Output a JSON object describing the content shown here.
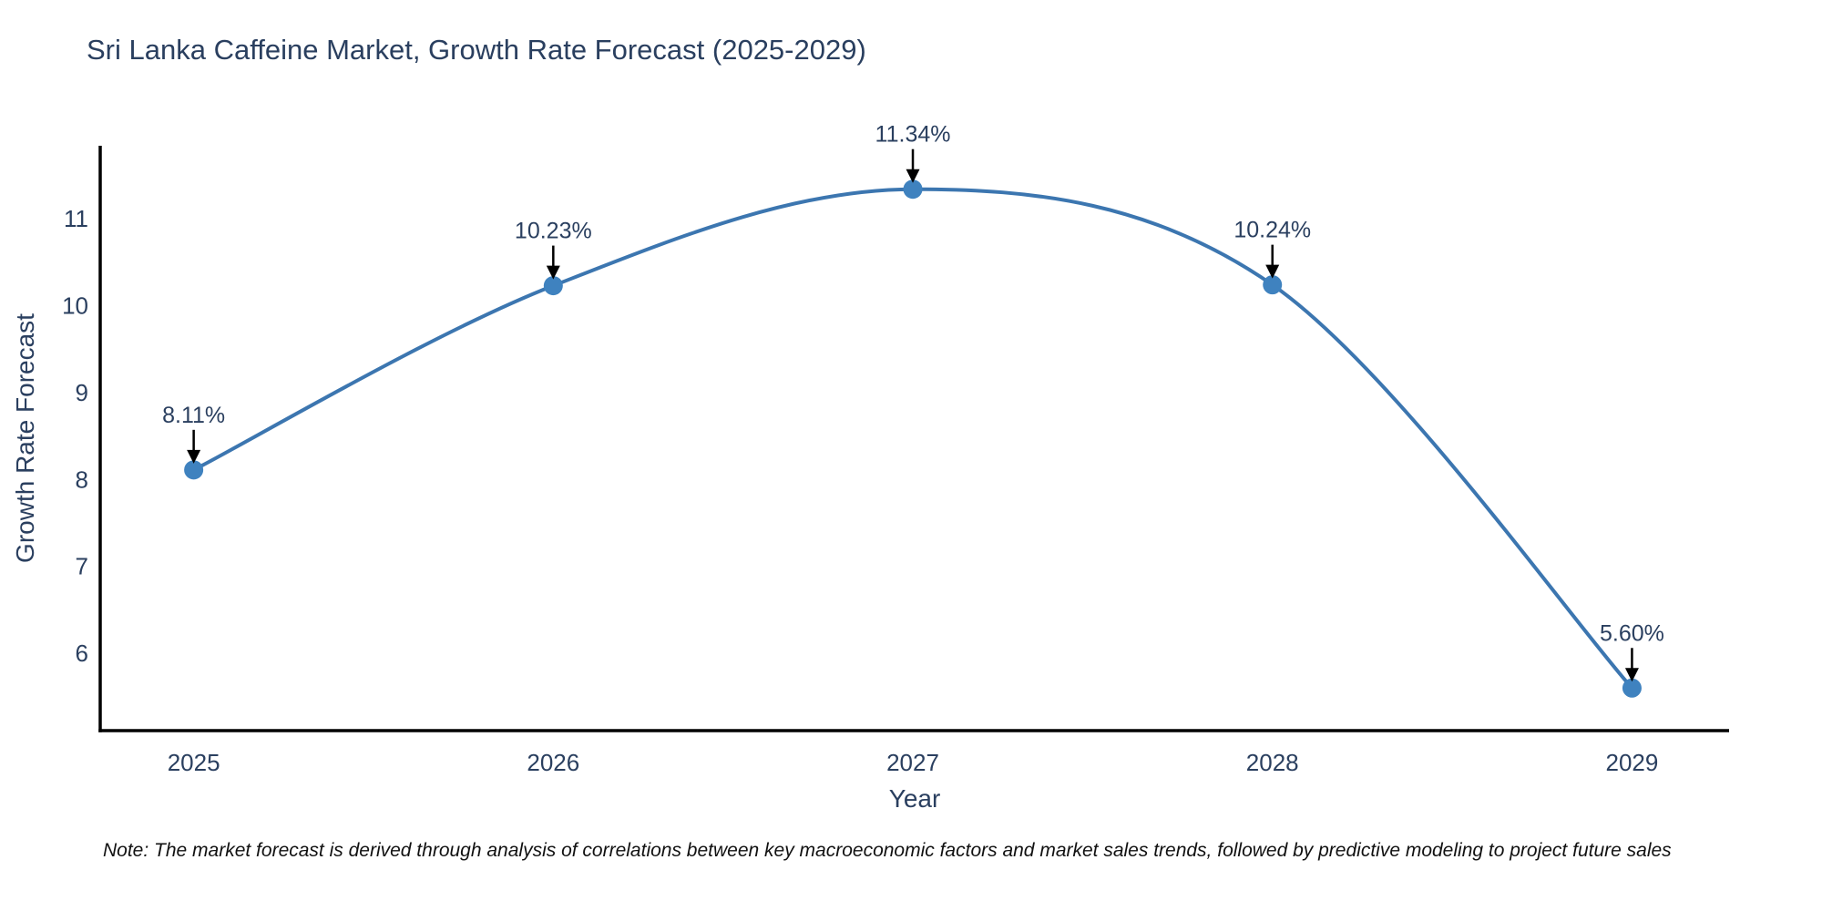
{
  "title": "Sri Lanka Caffeine Market, Growth Rate Forecast (2025-2029)",
  "note": "Note: The market forecast is derived through analysis of correlations between key macroeconomic factors and market sales trends, followed by predictive modeling to project future sales",
  "chart_data": {
    "type": "line",
    "title": "Sri Lanka Caffeine Market, Growth Rate Forecast (2025-2029)",
    "xlabel": "Year",
    "ylabel": "Growth Rate Forecast",
    "x": [
      2025,
      2026,
      2027,
      2028,
      2029
    ],
    "series": [
      {
        "name": "Growth Rate Forecast",
        "values": [
          8.11,
          10.23,
          11.34,
          10.24,
          5.6
        ]
      }
    ],
    "point_labels": [
      "8.11%",
      "10.23%",
      "11.34%",
      "10.24%",
      "5.60%"
    ],
    "xticks": [
      "2025",
      "2026",
      "2027",
      "2028",
      "2029"
    ],
    "yticks": [
      6,
      7,
      8,
      9,
      10,
      11
    ],
    "xlim": [
      2024.74,
      2029.27
    ],
    "ylim": [
      5.11,
      11.84
    ],
    "grid": false,
    "legend": false,
    "line_shape": "spline",
    "colors": {
      "line": "#3c76b0",
      "marker": "#3f82bf",
      "axis": "#000000",
      "text": "#2a3f5f",
      "annotation_arrow": "#000000"
    }
  }
}
